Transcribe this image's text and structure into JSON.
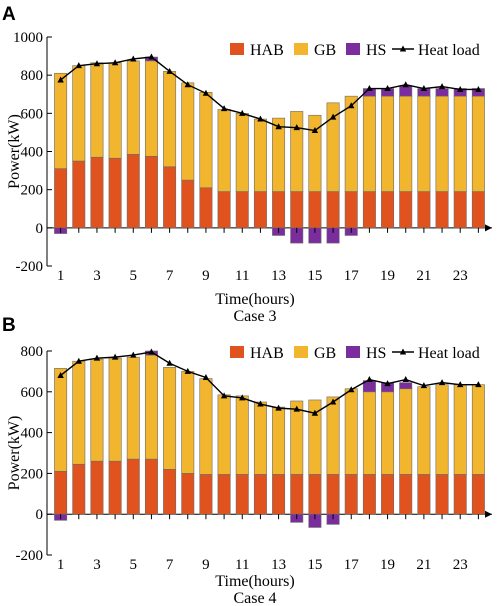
{
  "colors": {
    "HAB": "#E0531E",
    "GB": "#F2B52E",
    "HS": "#7B2D9E",
    "line": "#000000"
  },
  "chart_data": [
    {
      "type": "bar",
      "panel_label": "A",
      "caption": "Case 3",
      "xlabel": "Time(hours)",
      "ylabel": "Power(kW)",
      "ylim": [
        -200,
        1000
      ],
      "yticks": [
        "-200",
        "0",
        "200",
        "400",
        "600",
        "800",
        "1000"
      ],
      "xtick_labels": [
        "1",
        "3",
        "5",
        "7",
        "9",
        "11",
        "13",
        "15",
        "17",
        "19",
        "21",
        "23"
      ],
      "legend": {
        "HAB": "HAB",
        "GB": "GB",
        "HS": "HS",
        "load": "Heat load"
      },
      "legend_position": "top-right",
      "categories": [
        1,
        2,
        3,
        4,
        5,
        6,
        7,
        8,
        9,
        10,
        11,
        12,
        13,
        14,
        15,
        16,
        17,
        18,
        19,
        20,
        21,
        22,
        23,
        24
      ],
      "series": [
        {
          "name": "HAB",
          "values": [
            310,
            350,
            370,
            365,
            385,
            375,
            320,
            250,
            210,
            190,
            190,
            190,
            190,
            190,
            190,
            190,
            190,
            190,
            190,
            190,
            190,
            190,
            190,
            190
          ]
        },
        {
          "name": "GB",
          "values": [
            500,
            500,
            495,
            500,
            490,
            500,
            500,
            510,
            500,
            430,
            410,
            380,
            385,
            420,
            400,
            465,
            500,
            500,
            500,
            500,
            500,
            500,
            500,
            500
          ]
        },
        {
          "name": "HS",
          "values": [
            -30,
            0,
            0,
            0,
            0,
            20,
            0,
            0,
            0,
            0,
            0,
            0,
            -40,
            -80,
            -80,
            -80,
            -40,
            40,
            40,
            55,
            40,
            40,
            40,
            40
          ]
        },
        {
          "name": "Heat load",
          "values": [
            775,
            850,
            860,
            865,
            885,
            895,
            820,
            750,
            705,
            625,
            600,
            570,
            530,
            525,
            510,
            580,
            640,
            730,
            730,
            750,
            730,
            740,
            725,
            725
          ]
        }
      ]
    },
    {
      "type": "bar",
      "panel_label": "B",
      "caption": "Case 4",
      "xlabel": "Time(hours)",
      "ylabel": "Power(kW)",
      "ylim": [
        -200,
        800
      ],
      "yticks": [
        "-200",
        "0",
        "200",
        "400",
        "600",
        "800"
      ],
      "xtick_labels": [
        "1",
        "3",
        "5",
        "7",
        "9",
        "11",
        "13",
        "15",
        "17",
        "19",
        "21",
        "23"
      ],
      "legend": {
        "HAB": "HAB",
        "GB": "GB",
        "HS": "HS",
        "load": "Heat load"
      },
      "legend_position": "top-right",
      "categories": [
        1,
        2,
        3,
        4,
        5,
        6,
        7,
        8,
        9,
        10,
        11,
        12,
        13,
        14,
        15,
        16,
        17,
        18,
        19,
        20,
        21,
        22,
        23,
        24
      ],
      "series": [
        {
          "name": "HAB",
          "values": [
            210,
            245,
            260,
            260,
            270,
            270,
            220,
            200,
            195,
            195,
            195,
            195,
            195,
            195,
            195,
            195,
            195,
            195,
            195,
            195,
            195,
            195,
            195,
            195
          ]
        },
        {
          "name": "GB",
          "values": [
            505,
            505,
            500,
            505,
            500,
            510,
            500,
            500,
            470,
            390,
            385,
            355,
            330,
            360,
            365,
            380,
            420,
            405,
            405,
            420,
            430,
            440,
            440,
            440
          ]
        },
        {
          "name": "HS",
          "values": [
            -30,
            0,
            0,
            0,
            0,
            20,
            0,
            0,
            0,
            0,
            0,
            0,
            0,
            -40,
            -65,
            -50,
            0,
            55,
            45,
            30,
            0,
            0,
            0,
            0
          ]
        },
        {
          "name": "Heat load",
          "values": [
            680,
            750,
            765,
            770,
            780,
            795,
            740,
            700,
            670,
            580,
            570,
            540,
            520,
            515,
            495,
            550,
            610,
            660,
            640,
            660,
            630,
            645,
            635,
            635
          ]
        }
      ]
    }
  ]
}
